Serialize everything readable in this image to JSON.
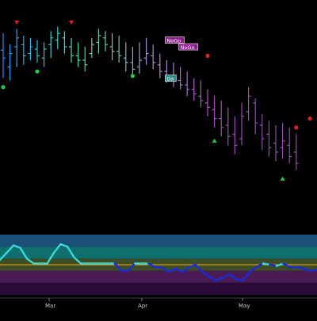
{
  "chart_data": {
    "type": "ohlc",
    "price_panel": {
      "x_tick_labels": [
        "Mar",
        "Apr",
        "May"
      ],
      "bars": [
        {
          "i": 0,
          "high": 70,
          "low": 30,
          "open": 55,
          "close": 48,
          "color": "#1e90ff"
        },
        {
          "i": 1,
          "high": 60,
          "low": 28,
          "open": 40,
          "close": 52,
          "color": "#2aa0ff"
        },
        {
          "i": 2,
          "high": 74,
          "low": 40,
          "open": 58,
          "close": 66,
          "color": "#22a8ff"
        },
        {
          "i": 3,
          "high": 68,
          "low": 42,
          "open": 60,
          "close": 50,
          "color": "#22b0f0"
        },
        {
          "i": 4,
          "high": 66,
          "low": 46,
          "open": 52,
          "close": 58,
          "color": "#22b8e8"
        },
        {
          "i": 5,
          "high": 64,
          "low": 44,
          "open": 56,
          "close": 50,
          "color": "#25c0e0"
        },
        {
          "i": 6,
          "high": 62,
          "low": 40,
          "open": 48,
          "close": 56,
          "color": "#28c8d8"
        },
        {
          "i": 7,
          "high": 72,
          "low": 48,
          "open": 60,
          "close": 66,
          "color": "#30d0d0"
        },
        {
          "i": 8,
          "high": 76,
          "low": 56,
          "open": 64,
          "close": 70,
          "color": "#38d8c8"
        },
        {
          "i": 9,
          "high": 72,
          "low": 52,
          "open": 66,
          "close": 58,
          "color": "#40d8c0"
        },
        {
          "i": 10,
          "high": 66,
          "low": 44,
          "open": 58,
          "close": 50,
          "color": "#48d8b8"
        },
        {
          "i": 11,
          "high": 62,
          "low": 40,
          "open": 50,
          "close": 46,
          "color": "#50d8b0"
        },
        {
          "i": 12,
          "high": 58,
          "low": 36,
          "open": 46,
          "close": 42,
          "color": "#58d0a8"
        },
        {
          "i": 13,
          "high": 66,
          "low": 48,
          "open": 52,
          "close": 60,
          "color": "#60d0a0"
        },
        {
          "i": 14,
          "high": 74,
          "low": 52,
          "open": 62,
          "close": 68,
          "color": "#68d098"
        },
        {
          "i": 15,
          "high": 72,
          "low": 54,
          "open": 66,
          "close": 60,
          "color": "#70c8a0"
        },
        {
          "i": 16,
          "high": 70,
          "low": 46,
          "open": 58,
          "close": 54,
          "color": "#78c0a8"
        },
        {
          "i": 17,
          "high": 68,
          "low": 44,
          "open": 54,
          "close": 50,
          "color": "#80b8b0"
        },
        {
          "i": 18,
          "high": 62,
          "low": 36,
          "open": 48,
          "close": 44,
          "color": "#88b0b8"
        },
        {
          "i": 19,
          "high": 58,
          "low": 32,
          "open": 44,
          "close": 38,
          "color": "#90a8c0"
        },
        {
          "i": 20,
          "high": 62,
          "low": 34,
          "open": 40,
          "close": 46,
          "color": "#98a0c8"
        },
        {
          "i": 21,
          "high": 66,
          "low": 42,
          "open": 48,
          "close": 52,
          "color": "#a098d0"
        },
        {
          "i": 22,
          "high": 60,
          "low": 38,
          "open": 50,
          "close": 44,
          "color": "#a890d0"
        },
        {
          "i": 23,
          "high": 52,
          "low": 30,
          "open": 42,
          "close": 36,
          "color": "#b088d0"
        },
        {
          "i": 24,
          "high": 46,
          "low": 26,
          "open": 36,
          "close": 32,
          "color": "#b080d0"
        },
        {
          "i": 25,
          "high": 44,
          "low": 22,
          "open": 32,
          "close": 28,
          "color": "#b078d0"
        },
        {
          "i": 26,
          "high": 40,
          "low": 20,
          "open": 28,
          "close": 24,
          "color": "#b070d0"
        },
        {
          "i": 27,
          "high": 36,
          "low": 14,
          "open": 24,
          "close": 20,
          "color": "#b068c8"
        },
        {
          "i": 28,
          "high": 30,
          "low": 10,
          "open": 20,
          "close": 16,
          "color": "#b060c8"
        },
        {
          "i": 29,
          "high": 28,
          "low": 4,
          "open": 14,
          "close": 10,
          "color": "#b058c0"
        },
        {
          "i": 30,
          "high": 20,
          "low": -4,
          "open": 8,
          "close": 4,
          "color": "#b058c0"
        },
        {
          "i": 31,
          "high": 14,
          "low": -14,
          "open": 2,
          "close": -6,
          "color": "#a850b8"
        },
        {
          "i": 32,
          "high": 10,
          "low": -22,
          "open": -6,
          "close": -14,
          "color": "#a850b8"
        },
        {
          "i": 33,
          "high": 4,
          "low": -30,
          "open": -12,
          "close": -22,
          "color": "#a050b0"
        },
        {
          "i": 34,
          "high": -4,
          "low": -38,
          "open": -20,
          "close": -30,
          "color": "#a050b0"
        },
        {
          "i": 35,
          "high": 8,
          "low": -30,
          "open": -24,
          "close": -4,
          "color": "#9850b0"
        },
        {
          "i": 36,
          "high": 22,
          "low": -8,
          "open": 0,
          "close": 14,
          "color": "#9850b0"
        },
        {
          "i": 37,
          "high": 12,
          "low": -20,
          "open": 8,
          "close": -10,
          "color": "#9050a8"
        },
        {
          "i": 38,
          "high": -2,
          "low": -34,
          "open": -12,
          "close": -24,
          "color": "#9050a8"
        },
        {
          "i": 39,
          "high": -8,
          "low": -40,
          "open": -20,
          "close": -32,
          "color": "#9050a8"
        },
        {
          "i": 40,
          "high": -12,
          "low": -44,
          "open": -28,
          "close": -36,
          "color": "#9050a8"
        },
        {
          "i": 41,
          "high": -10,
          "low": -42,
          "open": -32,
          "close": -26,
          "color": "#9050a8"
        },
        {
          "i": 42,
          "high": -14,
          "low": -46,
          "open": -30,
          "close": -40,
          "color": "#9050a8"
        },
        {
          "i": 43,
          "high": -20,
          "low": -52,
          "open": -36,
          "close": -46,
          "color": "#9050a8"
        }
      ],
      "markers": [
        {
          "i": 0,
          "value": 22,
          "shape": "circle",
          "color": "#22cc44"
        },
        {
          "i": 2,
          "value": 80,
          "shape": "triangle-down",
          "color": "#dd2222"
        },
        {
          "i": 5,
          "value": 36,
          "shape": "circle",
          "color": "#22cc44"
        },
        {
          "i": 10,
          "value": 80,
          "shape": "triangle-down",
          "color": "#dd2222"
        },
        {
          "i": 19,
          "value": 32,
          "shape": "circle",
          "color": "#22cc44"
        },
        {
          "i": 31,
          "value": -26,
          "shape": "triangle-up",
          "color": "#22cc44"
        },
        {
          "i": 30,
          "value": 50,
          "shape": "circle",
          "color": "#dd2222"
        },
        {
          "i": 41,
          "value": -60,
          "shape": "triangle-up",
          "color": "#22cc44"
        },
        {
          "i": 43,
          "value": -14,
          "shape": "circle",
          "color": "#dd2222"
        },
        {
          "i": 45,
          "value": -6,
          "shape": "circle",
          "color": "#dd2222"
        }
      ],
      "tags": [
        {
          "i": 24,
          "value": 64,
          "text": "NoGo",
          "kind": "nogo"
        },
        {
          "i": 26,
          "value": 58,
          "text": "NoGo",
          "kind": "nogo"
        },
        {
          "i": 24,
          "value": 30,
          "text": "Go",
          "kind": "go"
        }
      ]
    },
    "oscillator_panel": {
      "bands": [
        {
          "color": "#1c4f78"
        },
        {
          "color": "#0f6e6e"
        },
        {
          "color": "#3d4d26"
        },
        {
          "color": "#4a1b55"
        },
        {
          "color": "#2a0a38"
        }
      ],
      "zero_line_color": "#ffaa00",
      "series": [
        58,
        70,
        82,
        78,
        60,
        52,
        52,
        52,
        70,
        84,
        80,
        62,
        52,
        52,
        52,
        52,
        52,
        52,
        40,
        40,
        52,
        52,
        52,
        46,
        46,
        38,
        44,
        38,
        46,
        50,
        38,
        30,
        24,
        28,
        34,
        26,
        24,
        38,
        46,
        52,
        50,
        48,
        52,
        46,
        46,
        44,
        40,
        42
      ],
      "series_colors": {
        "high": "#3ad8d8",
        "low": "#1a2bd8"
      }
    }
  }
}
